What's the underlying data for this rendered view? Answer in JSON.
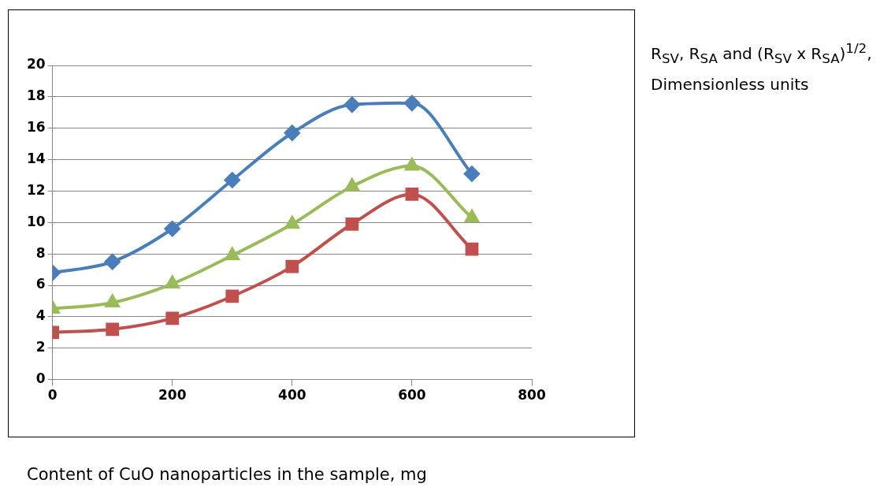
{
  "chart_data": {
    "type": "line",
    "xlabel": "Content of CuO nanoparticles in the sample, mg",
    "ylabel": "R$_{SV}$, R$_{SA}$ and (R$_{SV}$ x R$_{SA}$)$^{1/2}$, Dimensionless units",
    "x": [
      0,
      100,
      200,
      300,
      400,
      500,
      600,
      700
    ],
    "xlim": [
      0,
      800
    ],
    "xticks": [
      0,
      200,
      400,
      600,
      800
    ],
    "ylim": [
      0,
      20
    ],
    "yticks": [
      0,
      2,
      4,
      6,
      8,
      10,
      12,
      14,
      16,
      18,
      20
    ],
    "grid": "y",
    "legend": false,
    "series": [
      {
        "color": "#4a7ebb",
        "marker": "diamond",
        "values": [
          6.8,
          7.5,
          9.6,
          12.7,
          15.7,
          17.5,
          17.6,
          13.1
        ]
      },
      {
        "color": "#9bbb59",
        "marker": "triangle",
        "values": [
          4.5,
          4.9,
          6.1,
          7.9,
          9.9,
          12.3,
          13.6,
          10.3
        ]
      },
      {
        "color": "#c0504d",
        "marker": "square",
        "values": [
          3.0,
          3.2,
          3.9,
          5.3,
          7.2,
          9.9,
          11.8,
          8.3
        ]
      }
    ]
  }
}
